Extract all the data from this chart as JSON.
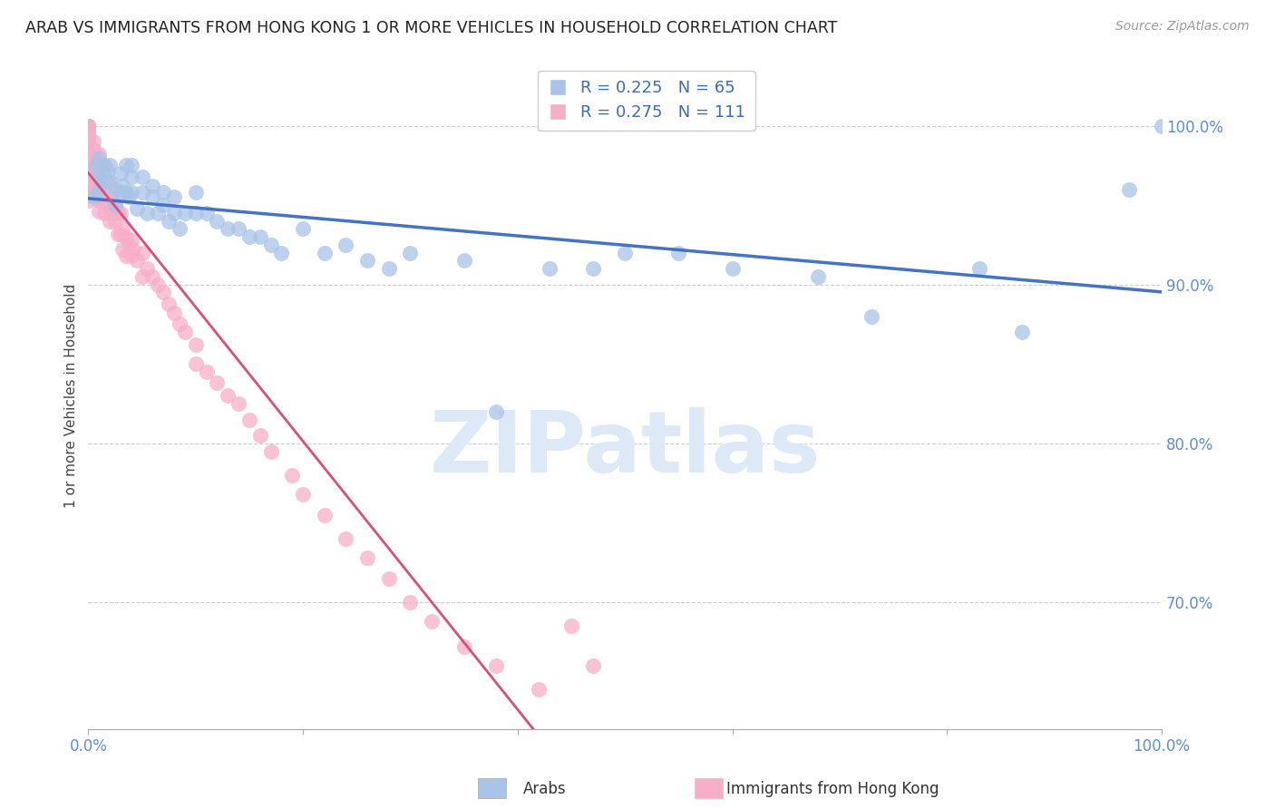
{
  "title": "ARAB VS IMMIGRANTS FROM HONG KONG 1 OR MORE VEHICLES IN HOUSEHOLD CORRELATION CHART",
  "source": "Source: ZipAtlas.com",
  "ylabel": "1 or more Vehicles in Household",
  "legend_label_bottom_left": "Arabs",
  "legend_label_bottom_right": "Immigrants from Hong Kong",
  "ytick_labels": [
    "100.0%",
    "90.0%",
    "80.0%",
    "70.0%"
  ],
  "ytick_values": [
    1.0,
    0.9,
    0.8,
    0.7
  ],
  "xlim": [
    0.0,
    1.0
  ],
  "ylim": [
    0.62,
    1.04
  ],
  "blue_R": 0.225,
  "blue_N": 65,
  "pink_R": 0.275,
  "pink_N": 111,
  "blue_color": "#a8c4e8",
  "pink_color": "#f7aec8",
  "blue_line_color": "#4472c4",
  "pink_line_color": "#d94f7a",
  "title_color": "#222222",
  "source_color": "#999999",
  "axis_label_color": "#5b8dd9",
  "legend_text_color": "#3b6abf",
  "watermark_text": "ZIPatlas",
  "watermark_color": "#dde9f7",
  "grid_color": "#cccccc",
  "background_color": "#ffffff",
  "blue_x": [
    0.005,
    0.007,
    0.01,
    0.01,
    0.01,
    0.012,
    0.015,
    0.015,
    0.018,
    0.02,
    0.02,
    0.025,
    0.025,
    0.03,
    0.03,
    0.032,
    0.035,
    0.035,
    0.038,
    0.04,
    0.04,
    0.04,
    0.045,
    0.05,
    0.05,
    0.055,
    0.06,
    0.06,
    0.065,
    0.07,
    0.07,
    0.075,
    0.08,
    0.08,
    0.085,
    0.09,
    0.1,
    0.1,
    0.11,
    0.12,
    0.13,
    0.14,
    0.15,
    0.16,
    0.17,
    0.18,
    0.2,
    0.22,
    0.24,
    0.26,
    0.28,
    0.3,
    0.35,
    0.38,
    0.43,
    0.47,
    0.5,
    0.55,
    0.6,
    0.68,
    0.73,
    0.83,
    0.87,
    0.97,
    1.0
  ],
  "blue_y": [
    0.955,
    0.975,
    0.98,
    0.97,
    0.96,
    0.965,
    0.975,
    0.968,
    0.972,
    0.975,
    0.965,
    0.96,
    0.95,
    0.97,
    0.958,
    0.962,
    0.975,
    0.958,
    0.955,
    0.975,
    0.968,
    0.958,
    0.948,
    0.968,
    0.958,
    0.945,
    0.962,
    0.955,
    0.945,
    0.958,
    0.95,
    0.94,
    0.955,
    0.945,
    0.935,
    0.945,
    0.958,
    0.945,
    0.945,
    0.94,
    0.935,
    0.935,
    0.93,
    0.93,
    0.925,
    0.92,
    0.935,
    0.92,
    0.925,
    0.915,
    0.91,
    0.92,
    0.915,
    0.82,
    0.91,
    0.91,
    0.92,
    0.92,
    0.91,
    0.905,
    0.88,
    0.91,
    0.87,
    0.96,
    1.0
  ],
  "pink_x": [
    0.0,
    0.0,
    0.0,
    0.0,
    0.0,
    0.0,
    0.0,
    0.0,
    0.0,
    0.0,
    0.0,
    0.0,
    0.0,
    0.0,
    0.0,
    0.0,
    0.0,
    0.0,
    0.0,
    0.0,
    0.0,
    0.0,
    0.0,
    0.0,
    0.0,
    0.0,
    0.0,
    0.0,
    0.0,
    0.0,
    0.0,
    0.0,
    0.0,
    0.0,
    0.0,
    0.005,
    0.005,
    0.005,
    0.005,
    0.005,
    0.007,
    0.007,
    0.007,
    0.007,
    0.01,
    0.01,
    0.01,
    0.01,
    0.01,
    0.01,
    0.012,
    0.012,
    0.012,
    0.015,
    0.015,
    0.015,
    0.015,
    0.018,
    0.018,
    0.02,
    0.02,
    0.02,
    0.022,
    0.022,
    0.025,
    0.025,
    0.028,
    0.028,
    0.03,
    0.03,
    0.032,
    0.032,
    0.035,
    0.035,
    0.038,
    0.04,
    0.04,
    0.042,
    0.045,
    0.05,
    0.05,
    0.055,
    0.06,
    0.065,
    0.07,
    0.075,
    0.08,
    0.085,
    0.09,
    0.1,
    0.1,
    0.11,
    0.12,
    0.13,
    0.14,
    0.15,
    0.16,
    0.17,
    0.19,
    0.2,
    0.22,
    0.24,
    0.26,
    0.28,
    0.3,
    0.32,
    0.35,
    0.38,
    0.42,
    0.45,
    0.47
  ],
  "pink_y": [
    1.0,
    1.0,
    1.0,
    1.0,
    1.0,
    1.0,
    1.0,
    1.0,
    0.998,
    0.998,
    0.996,
    0.996,
    0.994,
    0.994,
    0.993,
    0.992,
    0.99,
    0.988,
    0.987,
    0.985,
    0.984,
    0.982,
    0.98,
    0.978,
    0.976,
    0.974,
    0.972,
    0.97,
    0.968,
    0.965,
    0.963,
    0.96,
    0.958,
    0.956,
    0.953,
    0.99,
    0.985,
    0.98,
    0.975,
    0.97,
    0.975,
    0.968,
    0.96,
    0.955,
    0.982,
    0.975,
    0.968,
    0.96,
    0.953,
    0.946,
    0.975,
    0.965,
    0.955,
    0.975,
    0.965,
    0.955,
    0.945,
    0.965,
    0.95,
    0.962,
    0.952,
    0.94,
    0.955,
    0.945,
    0.95,
    0.94,
    0.945,
    0.932,
    0.945,
    0.932,
    0.935,
    0.922,
    0.93,
    0.918,
    0.925,
    0.928,
    0.918,
    0.922,
    0.915,
    0.92,
    0.905,
    0.91,
    0.905,
    0.9,
    0.895,
    0.888,
    0.882,
    0.875,
    0.87,
    0.862,
    0.85,
    0.845,
    0.838,
    0.83,
    0.825,
    0.815,
    0.805,
    0.795,
    0.78,
    0.768,
    0.755,
    0.74,
    0.728,
    0.715,
    0.7,
    0.688,
    0.672,
    0.66,
    0.645,
    0.685,
    0.66
  ]
}
